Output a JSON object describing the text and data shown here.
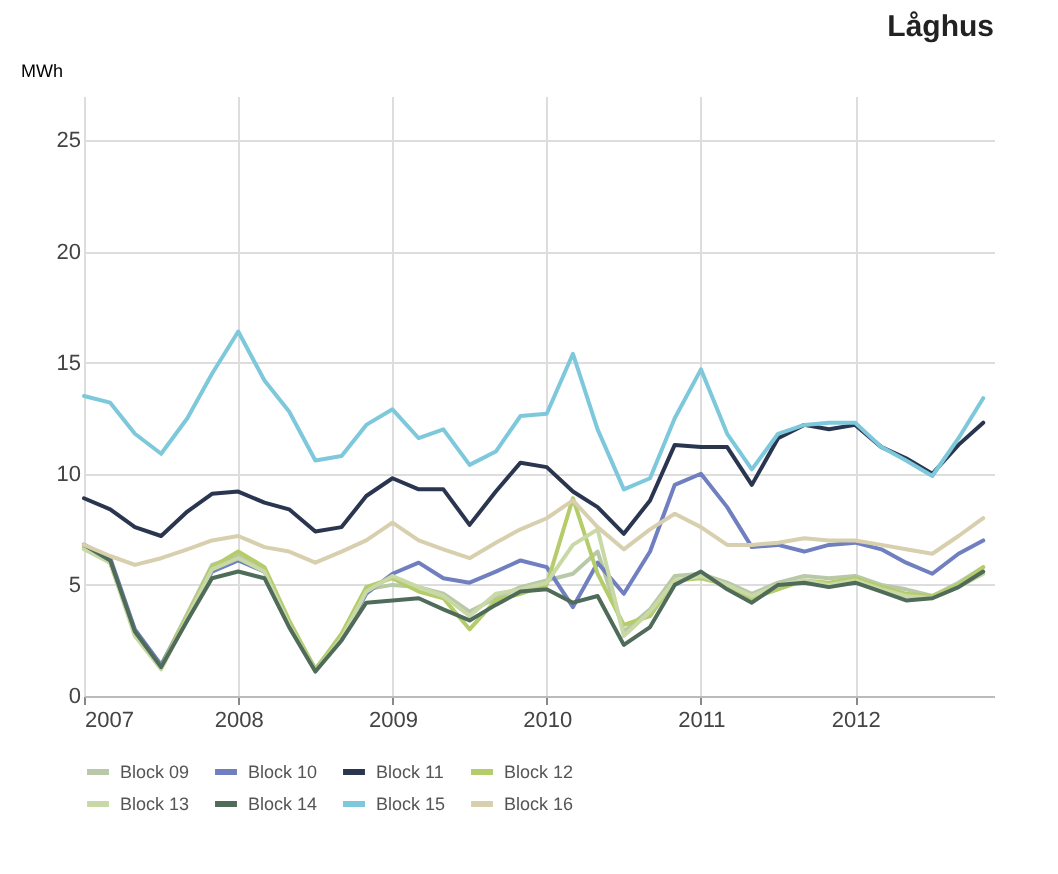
{
  "chart_data": {
    "type": "line",
    "title": "Låghus",
    "ylabel": "MWh",
    "grid": true,
    "legend": "bottom",
    "line_style": "solid",
    "marker": "none",
    "xlim": [
      2007,
      2012.9
    ],
    "xticks": [
      2007,
      2008,
      2009,
      2010,
      2011,
      2012
    ],
    "ylim": [
      0,
      27
    ],
    "yticks": [
      0,
      5,
      10,
      15,
      20,
      25
    ],
    "x": [
      2007,
      2007.17,
      2007.33,
      2007.5,
      2007.67,
      2007.83,
      2008,
      2008.17,
      2008.33,
      2008.5,
      2008.67,
      2008.83,
      2009,
      2009.17,
      2009.33,
      2009.5,
      2009.67,
      2009.83,
      2010,
      2010.17,
      2010.33,
      2010.5,
      2010.67,
      2010.83,
      2011,
      2011.17,
      2011.33,
      2011.5,
      2011.67,
      2011.83,
      2012,
      2012.17,
      2012.33,
      2012.5,
      2012.67,
      2012.83
    ],
    "series": [
      {
        "name": "Block 09",
        "color": "#b8c8a8",
        "values": [
          6.7,
          6.0,
          2.9,
          1.4,
          3.7,
          5.9,
          6.3,
          5.7,
          3.3,
          1.2,
          2.7,
          4.8,
          5.0,
          4.9,
          4.6,
          3.8,
          4.4,
          4.9,
          5.2,
          5.5,
          6.5,
          2.9,
          3.9,
          5.4,
          5.5,
          5.1,
          4.6,
          5.1,
          5.4,
          5.3,
          5.4,
          5.0,
          4.8,
          4.5,
          5.1,
          5.8
        ]
      },
      {
        "name": "Block 10",
        "color": "#6f7fbf",
        "values": [
          6.8,
          6.2,
          3.0,
          1.4,
          3.5,
          5.6,
          6.1,
          5.6,
          3.2,
          1.2,
          2.6,
          4.6,
          5.5,
          6.0,
          5.3,
          5.1,
          5.6,
          6.1,
          5.8,
          4.0,
          6.0,
          4.6,
          6.5,
          9.5,
          10.0,
          8.5,
          6.7,
          6.8,
          6.5,
          6.8,
          6.9,
          6.6,
          6.0,
          5.5,
          6.4,
          7.0
        ]
      },
      {
        "name": "Block 11",
        "color": "#2a3550",
        "values": [
          8.9,
          8.4,
          7.6,
          7.2,
          8.3,
          9.1,
          9.2,
          8.7,
          8.4,
          7.4,
          7.6,
          9.0,
          9.8,
          9.3,
          9.3,
          7.7,
          9.2,
          10.5,
          10.3,
          9.2,
          8.5,
          7.3,
          8.8,
          11.3,
          11.2,
          11.2,
          9.5,
          11.6,
          12.2,
          12.0,
          12.2,
          11.2,
          10.7,
          10.0,
          11.3,
          12.3
        ]
      },
      {
        "name": "Block 12",
        "color": "#b5cc6a",
        "values": [
          6.7,
          6.0,
          2.8,
          1.3,
          3.6,
          5.8,
          6.5,
          5.8,
          3.4,
          1.2,
          2.8,
          4.9,
          5.3,
          4.7,
          4.4,
          3.0,
          4.3,
          4.6,
          5.0,
          8.9,
          5.5,
          3.2,
          3.6,
          5.2,
          5.3,
          5.0,
          4.4,
          4.8,
          5.2,
          5.1,
          5.3,
          4.9,
          4.6,
          4.5,
          5.0,
          5.8
        ]
      },
      {
        "name": "Block 13",
        "color": "#c9d9a6",
        "values": [
          6.6,
          6.0,
          2.7,
          1.2,
          3.5,
          5.7,
          6.2,
          5.6,
          3.2,
          1.1,
          2.6,
          4.7,
          5.4,
          4.9,
          4.5,
          3.6,
          4.6,
          4.8,
          5.1,
          6.8,
          7.5,
          2.7,
          3.8,
          5.2,
          5.4,
          5.0,
          4.5,
          5.0,
          5.2,
          5.0,
          5.2,
          4.8,
          4.5,
          4.4,
          4.9,
          5.5
        ]
      },
      {
        "name": "Block 14",
        "color": "#4f6b5a",
        "values": [
          6.8,
          6.1,
          2.9,
          1.3,
          3.4,
          5.3,
          5.6,
          5.3,
          3.1,
          1.1,
          2.5,
          4.2,
          4.3,
          4.4,
          3.9,
          3.4,
          4.1,
          4.7,
          4.8,
          4.2,
          4.5,
          2.3,
          3.1,
          5.0,
          5.6,
          4.8,
          4.2,
          5.0,
          5.1,
          4.9,
          5.1,
          4.7,
          4.3,
          4.4,
          4.9,
          5.6
        ]
      },
      {
        "name": "Block 15",
        "color": "#7ec8dc",
        "values": [
          13.5,
          13.2,
          11.8,
          10.9,
          12.5,
          14.5,
          16.4,
          14.2,
          12.8,
          10.6,
          10.8,
          12.2,
          12.9,
          11.6,
          12.0,
          10.4,
          11.0,
          12.6,
          12.7,
          15.4,
          12.0,
          9.3,
          9.8,
          12.5,
          14.7,
          11.8,
          10.2,
          11.8,
          12.2,
          12.3,
          12.3,
          11.2,
          10.6,
          9.9,
          11.6,
          13.4
        ]
      },
      {
        "name": "Block 16",
        "color": "#d8cfae",
        "values": [
          6.8,
          6.3,
          5.9,
          6.2,
          6.6,
          7.0,
          7.2,
          6.7,
          6.5,
          6.0,
          6.5,
          7.0,
          7.8,
          7.0,
          6.6,
          6.2,
          6.9,
          7.5,
          8.0,
          8.8,
          7.6,
          6.6,
          7.5,
          8.2,
          7.6,
          6.8,
          6.8,
          6.9,
          7.1,
          7.0,
          7.0,
          6.8,
          6.6,
          6.4,
          7.2,
          8.0
        ]
      }
    ]
  }
}
